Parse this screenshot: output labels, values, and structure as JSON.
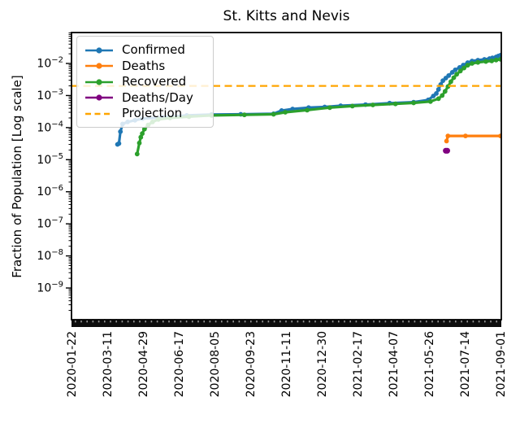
{
  "title": "St. Kitts and Nevis",
  "axes": {
    "ylabel": "Fraction of Population [Log scale]",
    "x_tick_labels": [
      "2020-01-22",
      "2020-03-11",
      "2020-04-29",
      "2020-06-17",
      "2020-08-05",
      "2020-09-23",
      "2020-11-11",
      "2020-12-30",
      "2021-02-17",
      "2021-04-07",
      "2021-05-26",
      "2021-07-14",
      "2021-09-01"
    ],
    "y_tick_exponents": [
      -2,
      -3,
      -4,
      -5,
      -6,
      -7,
      -8,
      -9
    ]
  },
  "chart_data": {
    "type": "line",
    "title": "St. Kitts and Nevis",
    "xlabel": "",
    "ylabel": "Fraction of Population [Log scale]",
    "yscale": "log",
    "ylim": [
      1e-10,
      0.09
    ],
    "xlim": [
      "2020-01-22",
      "2021-09-01"
    ],
    "grid": false,
    "legend_position": "upper left",
    "projection_value": 0.002,
    "series": [
      {
        "name": "Confirmed",
        "color": "#1f77b4",
        "style": "solid",
        "markers": true,
        "points": [
          [
            "2020-03-25",
            3e-05
          ],
          [
            "2020-03-27",
            3.2e-05
          ],
          [
            "2020-03-29",
            7.5e-05
          ],
          [
            "2020-04-01",
            0.00013
          ],
          [
            "2020-04-08",
            0.00015
          ],
          [
            "2020-04-18",
            0.00017
          ],
          [
            "2020-04-28",
            0.00019
          ],
          [
            "2020-05-26",
            0.00021
          ],
          [
            "2020-06-28",
            0.00024
          ],
          [
            "2020-08-01",
            0.000255
          ],
          [
            "2020-09-10",
            0.00026
          ],
          [
            "2020-10-25",
            0.00027
          ],
          [
            "2020-11-05",
            0.00034
          ],
          [
            "2020-11-20",
            0.00038
          ],
          [
            "2020-12-12",
            0.00042
          ],
          [
            "2021-01-03",
            0.00044
          ],
          [
            "2021-01-25",
            0.00048
          ],
          [
            "2021-02-28",
            0.00052
          ],
          [
            "2021-04-02",
            0.00058
          ],
          [
            "2021-05-05",
            0.00062
          ],
          [
            "2021-05-25",
            0.00073
          ],
          [
            "2021-06-01",
            0.00097
          ],
          [
            "2021-06-05",
            0.00116
          ],
          [
            "2021-06-08",
            0.00155
          ],
          [
            "2021-06-11",
            0.0022
          ],
          [
            "2021-06-14",
            0.0029
          ],
          [
            "2021-06-18",
            0.0035
          ],
          [
            "2021-06-22",
            0.0042
          ],
          [
            "2021-06-27",
            0.0053
          ],
          [
            "2021-07-01",
            0.0063
          ],
          [
            "2021-07-07",
            0.0075
          ],
          [
            "2021-07-12",
            0.0089
          ],
          [
            "2021-07-18",
            0.0106
          ],
          [
            "2021-07-24",
            0.0119
          ],
          [
            "2021-08-01",
            0.0126
          ],
          [
            "2021-08-10",
            0.0134
          ],
          [
            "2021-08-17",
            0.0142
          ],
          [
            "2021-08-21",
            0.015
          ],
          [
            "2021-08-26",
            0.016
          ],
          [
            "2021-08-29",
            0.017
          ],
          [
            "2021-09-01",
            0.018
          ]
        ]
      },
      {
        "name": "Deaths",
        "color": "#ff7f0e",
        "style": "solid",
        "markers": true,
        "points": [
          [
            "2021-06-19",
            3.8e-05
          ],
          [
            "2021-06-21",
            5.5e-05
          ],
          [
            "2021-07-15",
            5.5e-05
          ],
          [
            "2021-09-01",
            5.5e-05
          ]
        ]
      },
      {
        "name": "Recovered",
        "color": "#2ca02c",
        "style": "solid",
        "markers": true,
        "points": [
          [
            "2020-04-21",
            1.5e-05
          ],
          [
            "2020-04-24",
            3.3e-05
          ],
          [
            "2020-04-26",
            5e-05
          ],
          [
            "2020-04-28",
            6.5e-05
          ],
          [
            "2020-05-01",
            9e-05
          ],
          [
            "2020-05-06",
            0.00012
          ],
          [
            "2020-05-12",
            0.00015
          ],
          [
            "2020-05-20",
            0.00018
          ],
          [
            "2020-06-05",
            0.0002
          ],
          [
            "2020-07-01",
            0.00022
          ],
          [
            "2020-08-01",
            0.00024
          ],
          [
            "2020-09-15",
            0.00025
          ],
          [
            "2020-10-25",
            0.00026
          ],
          [
            "2020-11-10",
            0.0003
          ],
          [
            "2020-12-10",
            0.00035
          ],
          [
            "2021-01-10",
            0.00042
          ],
          [
            "2021-02-10",
            0.00047
          ],
          [
            "2021-03-10",
            0.00051
          ],
          [
            "2021-04-10",
            0.00055
          ],
          [
            "2021-05-05",
            0.00059
          ],
          [
            "2021-05-28",
            0.00065
          ],
          [
            "2021-06-08",
            0.0008
          ],
          [
            "2021-06-13",
            0.001
          ],
          [
            "2021-06-17",
            0.00135
          ],
          [
            "2021-06-21",
            0.0019
          ],
          [
            "2021-06-25",
            0.0027
          ],
          [
            "2021-06-29",
            0.0036
          ],
          [
            "2021-07-03",
            0.0046
          ],
          [
            "2021-07-08",
            0.0058
          ],
          [
            "2021-07-13",
            0.0072
          ],
          [
            "2021-07-18",
            0.0088
          ],
          [
            "2021-07-24",
            0.01
          ],
          [
            "2021-08-01",
            0.0108
          ],
          [
            "2021-08-12",
            0.0115
          ],
          [
            "2021-08-20",
            0.012
          ],
          [
            "2021-08-26",
            0.0128
          ],
          [
            "2021-09-01",
            0.0135
          ]
        ]
      },
      {
        "name": "Deaths/Day",
        "color": "#800080",
        "style": "solid",
        "markers": true,
        "points": [
          [
            "2021-06-18",
            1.9e-05
          ],
          [
            "2021-06-20",
            1.9e-05
          ]
        ]
      },
      {
        "name": "Projection",
        "color": "#ffa500",
        "style": "dashed",
        "markers": false,
        "points": [
          [
            "2020-01-22",
            0.002
          ],
          [
            "2021-09-01",
            0.002
          ]
        ]
      }
    ],
    "legend": {
      "entries": [
        "Confirmed",
        "Deaths",
        "Recovered",
        "Deaths/Day",
        "Projection"
      ]
    }
  }
}
